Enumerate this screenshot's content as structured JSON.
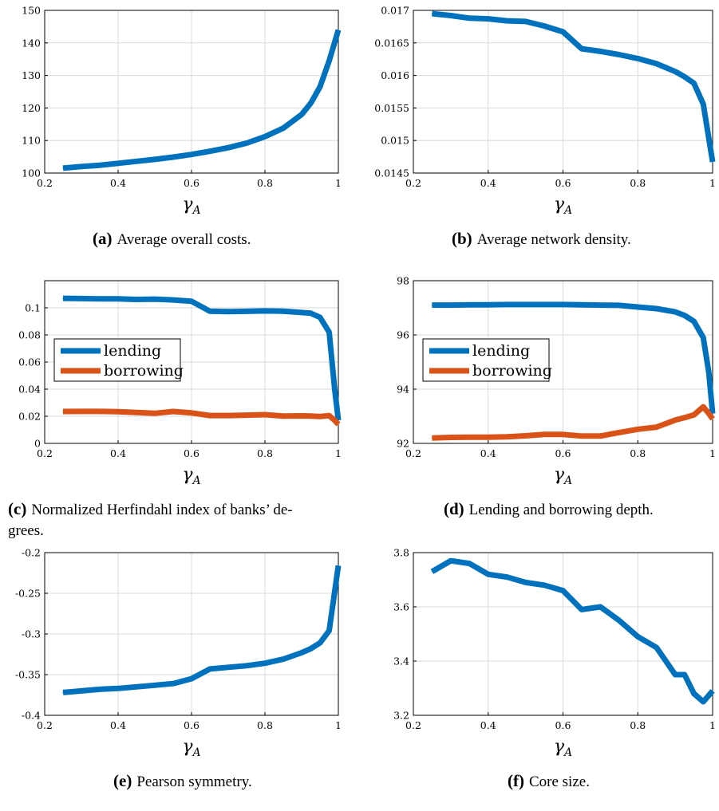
{
  "colors": {
    "lending": "#0072BD",
    "borrowing": "#D95319",
    "grid": "#d9d9d9",
    "axis": "#000000"
  },
  "panels": [
    {
      "label": "(a)",
      "caption": "Average overall costs."
    },
    {
      "label": "(b)",
      "caption": "Average network density."
    },
    {
      "label": "(c)",
      "caption": "Normalized Herfindahl index of banks’ de-",
      "caption2": "grees."
    },
    {
      "label": "(d)",
      "caption": "Lending and borrowing depth."
    },
    {
      "label": "(e)",
      "caption": "Pearson symmetry."
    },
    {
      "label": "(f)",
      "caption": "Core size."
    }
  ],
  "chart_data": [
    {
      "type": "line",
      "xlabel": "γ_A",
      "xlim": [
        0.2,
        1
      ],
      "ylim": [
        100,
        150
      ],
      "xticks": [
        "0.2",
        "0.4",
        "0.6",
        "0.8",
        "1"
      ],
      "yticks": [
        "100",
        "110",
        "120",
        "130",
        "140",
        "150"
      ],
      "grid": true,
      "x": [
        0.25,
        0.3,
        0.35,
        0.4,
        0.45,
        0.5,
        0.55,
        0.6,
        0.65,
        0.7,
        0.75,
        0.8,
        0.85,
        0.9,
        0.925,
        0.95,
        0.975,
        1.0
      ],
      "series": [
        {
          "color": "#0072BD",
          "values": [
            101.5,
            102.0,
            102.4,
            103.0,
            103.6,
            104.2,
            104.9,
            105.7,
            106.7,
            107.8,
            109.2,
            111.2,
            113.8,
            118.0,
            121.5,
            126.5,
            134.5,
            144.0
          ]
        }
      ]
    },
    {
      "type": "line",
      "xlabel": "γ_A",
      "xlim": [
        0.2,
        1
      ],
      "ylim": [
        0.0145,
        0.017
      ],
      "xticks": [
        "0.2",
        "0.4",
        "0.6",
        "0.8",
        "1"
      ],
      "yticks": [
        "0.0145",
        "0.015",
        "0.0155",
        "0.016",
        "0.0165",
        "0.017"
      ],
      "grid": true,
      "x": [
        0.25,
        0.3,
        0.35,
        0.4,
        0.45,
        0.5,
        0.55,
        0.6,
        0.65,
        0.7,
        0.75,
        0.8,
        0.85,
        0.9,
        0.925,
        0.95,
        0.975,
        1.0
      ],
      "series": [
        {
          "color": "#0072BD",
          "values": [
            0.01695,
            0.01692,
            0.01688,
            0.01687,
            0.01684,
            0.01683,
            0.01676,
            0.01667,
            0.01641,
            0.01637,
            0.01632,
            0.01626,
            0.01618,
            0.01606,
            0.01598,
            0.01588,
            0.01556,
            0.01467
          ]
        }
      ]
    },
    {
      "type": "line",
      "xlabel": "γ_A",
      "xlim": [
        0.2,
        1
      ],
      "ylim": [
        0,
        0.12
      ],
      "xticks": [
        "0.2",
        "0.4",
        "0.6",
        "0.8",
        "1"
      ],
      "yticks": [
        "0",
        "0.02",
        "0.04",
        "0.06",
        "0.08",
        "0.1"
      ],
      "ytick_values": [
        0,
        0.02,
        0.04,
        0.06,
        0.08,
        0.1
      ],
      "grid": true,
      "legend": "center-left",
      "x": [
        0.25,
        0.3,
        0.35,
        0.4,
        0.45,
        0.5,
        0.55,
        0.6,
        0.65,
        0.7,
        0.75,
        0.8,
        0.85,
        0.9,
        0.925,
        0.95,
        0.975,
        0.99,
        1.0
      ],
      "series": [
        {
          "name": "lending",
          "color": "#0072BD",
          "values": [
            0.107,
            0.1068,
            0.1066,
            0.1066,
            0.1062,
            0.1064,
            0.1058,
            0.1048,
            0.0975,
            0.0972,
            0.0974,
            0.0977,
            0.0975,
            0.0965,
            0.096,
            0.093,
            0.082,
            0.04,
            0.017
          ]
        },
        {
          "name": "borrowing",
          "color": "#D95319",
          "values": [
            0.0235,
            0.0236,
            0.0236,
            0.0234,
            0.0228,
            0.0222,
            0.0235,
            0.0225,
            0.0205,
            0.0205,
            0.0208,
            0.0212,
            0.0202,
            0.0203,
            0.0202,
            0.0198,
            0.0205,
            0.017,
            0.014
          ]
        }
      ]
    },
    {
      "type": "line",
      "xlabel": "γ_A",
      "xlim": [
        0.2,
        1
      ],
      "ylim": [
        92,
        98
      ],
      "xticks": [
        "0.2",
        "0.4",
        "0.6",
        "0.8",
        "1"
      ],
      "yticks": [
        "92",
        "94",
        "96",
        "98"
      ],
      "grid": true,
      "legend": "center-left",
      "x": [
        0.25,
        0.3,
        0.35,
        0.4,
        0.45,
        0.5,
        0.55,
        0.6,
        0.65,
        0.7,
        0.75,
        0.8,
        0.85,
        0.9,
        0.925,
        0.95,
        0.975,
        0.99,
        1.0
      ],
      "series": [
        {
          "name": "lending",
          "color": "#0072BD",
          "values": [
            97.1,
            97.1,
            97.11,
            97.11,
            97.12,
            97.12,
            97.12,
            97.12,
            97.11,
            97.1,
            97.09,
            97.03,
            96.97,
            96.85,
            96.72,
            96.5,
            95.9,
            94.6,
            93.1
          ]
        },
        {
          "name": "borrowing",
          "color": "#D95319",
          "values": [
            92.2,
            92.22,
            92.23,
            92.23,
            92.24,
            92.28,
            92.33,
            92.33,
            92.27,
            92.27,
            92.4,
            92.52,
            92.6,
            92.86,
            92.95,
            93.05,
            93.35,
            93.1,
            92.9
          ]
        }
      ]
    },
    {
      "type": "line",
      "xlabel": "γ_A",
      "xlim": [
        0.2,
        1
      ],
      "ylim": [
        -0.4,
        -0.2
      ],
      "xticks": [
        "0.2",
        "0.4",
        "0.6",
        "0.8",
        "1"
      ],
      "yticks": [
        "-0.4",
        "-0.35",
        "-0.3",
        "-0.25",
        "-0.2"
      ],
      "grid": true,
      "x": [
        0.25,
        0.3,
        0.35,
        0.4,
        0.45,
        0.5,
        0.55,
        0.6,
        0.65,
        0.7,
        0.75,
        0.8,
        0.85,
        0.9,
        0.925,
        0.95,
        0.975,
        1.0
      ],
      "series": [
        {
          "color": "#0072BD",
          "values": [
            -0.372,
            -0.37,
            -0.368,
            -0.367,
            -0.365,
            -0.363,
            -0.361,
            -0.355,
            -0.343,
            -0.341,
            -0.339,
            -0.336,
            -0.331,
            -0.323,
            -0.318,
            -0.311,
            -0.296,
            -0.216
          ]
        }
      ]
    },
    {
      "type": "line",
      "xlabel": "γ_A",
      "xlim": [
        0.2,
        1
      ],
      "ylim": [
        3.2,
        3.8
      ],
      "xticks": [
        "0.2",
        "0.4",
        "0.6",
        "0.8",
        "1"
      ],
      "yticks": [
        "3.2",
        "3.4",
        "3.6",
        "3.8"
      ],
      "grid": true,
      "x": [
        0.25,
        0.3,
        0.35,
        0.4,
        0.45,
        0.5,
        0.55,
        0.6,
        0.65,
        0.7,
        0.75,
        0.8,
        0.85,
        0.9,
        0.925,
        0.95,
        0.975,
        1.0
      ],
      "series": [
        {
          "color": "#0072BD",
          "values": [
            3.73,
            3.77,
            3.76,
            3.72,
            3.71,
            3.69,
            3.68,
            3.66,
            3.59,
            3.6,
            3.55,
            3.49,
            3.45,
            3.35,
            3.35,
            3.28,
            3.25,
            3.29
          ]
        }
      ]
    }
  ]
}
